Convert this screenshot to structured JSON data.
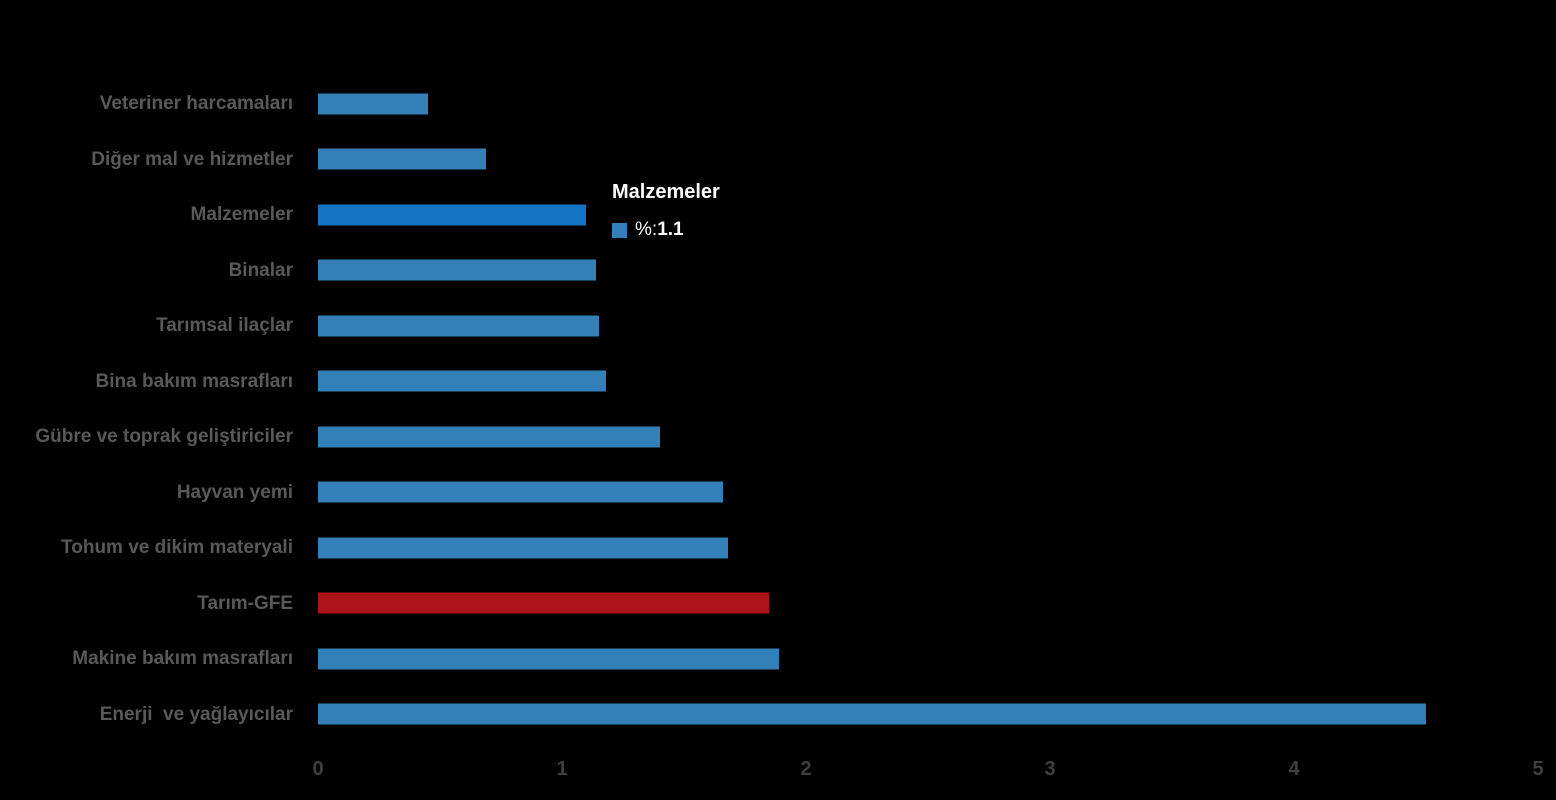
{
  "chart_data": {
    "type": "bar",
    "orientation": "horizontal",
    "title": "",
    "xlabel": "",
    "ylabel": "",
    "series_name": "%",
    "categories": [
      "Veteriner harcamaları",
      "Diğer mal ve hizmetler",
      "Malzemeler",
      "Binalar",
      "Tarımsal ilaçlar",
      "Bina bakım masrafları",
      "Gübre ve toprak geliştiriciler",
      "Hayvan yemi",
      "Tohum ve dikim materyali",
      "Tarım-GFE",
      "Makine bakım masrafları",
      "Enerji  ve yağlayıcılar"
    ],
    "values": [
      0.45,
      0.69,
      1.1,
      1.14,
      1.15,
      1.18,
      1.4,
      1.66,
      1.68,
      1.85,
      1.89,
      4.54
    ],
    "point_colors": [
      "#3380B8",
      "#3380B8",
      "#1274C5",
      "#3380B8",
      "#3380B8",
      "#3380B8",
      "#3380B8",
      "#3380B8",
      "#3380B8",
      "#AD141A",
      "#3380B8",
      "#3380B8"
    ],
    "highlighted_category": "Malzemeler",
    "emphasized_category": "Tarım-GFE",
    "xlim": [
      0,
      5
    ],
    "x_ticks": [
      "0",
      "1",
      "2",
      "3",
      "4",
      "5"
    ],
    "grid": false,
    "legend_position": "none",
    "colors": {
      "background": "#000000",
      "default_bar": "#3380B8",
      "highlight_bar": "#1274C5",
      "emphasis_bar": "#AD141A",
      "category_label_text": "#595959",
      "axis_tick_text": "#3f3f3f",
      "tooltip_text": "#ffffff"
    }
  },
  "tooltip": {
    "title": "Malzemeler",
    "series_label": "%: ",
    "value": "1.1",
    "swatch_color": "#3380B8"
  }
}
